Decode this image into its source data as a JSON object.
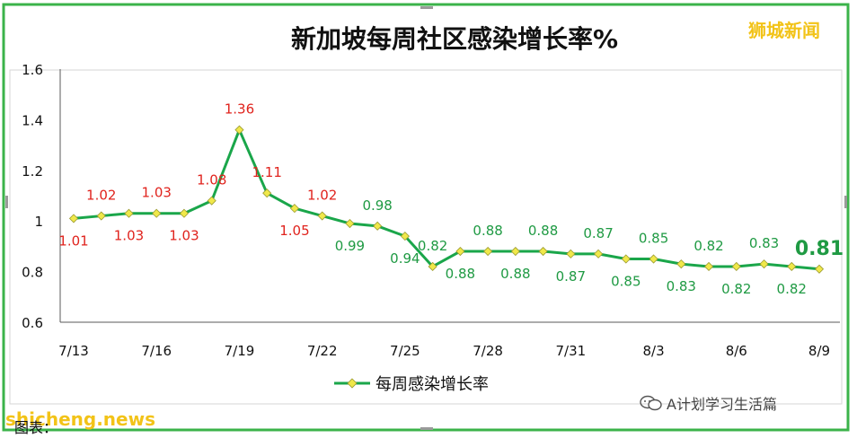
{
  "brand": "狮城新闻",
  "site": "shicheng.news",
  "caption": "图表：",
  "account": "A计划学习生活篇",
  "icons": {
    "chat": "wechat-bubbles-icon"
  },
  "colors": {
    "line": "#1aa64a",
    "marker": "#f0e84a",
    "label_low": "#1f9a43",
    "label_high": "#e0231d",
    "border": "#3bb34a",
    "brand": "#f2c318",
    "grid_axis": "#5a5a5a",
    "inner_border": "#d6d6d6"
  },
  "chart_data": {
    "type": "line",
    "title": "新加坡每周社区感染增长率%",
    "legend": "bottom",
    "grid": false,
    "ylim": [
      0.6,
      1.6
    ],
    "y_ticks": [
      "0.6",
      "0.8",
      "1",
      "1.2",
      "1.4",
      "1.6"
    ],
    "x_ticks": [
      "7/13",
      "7/16",
      "7/19",
      "7/22",
      "7/25",
      "7/28",
      "7/31",
      "8/3",
      "8/6",
      "8/9"
    ],
    "x": [
      "7/13",
      "7/14",
      "7/15",
      "7/16",
      "7/17",
      "7/18",
      "7/19",
      "7/20",
      "7/21",
      "7/22",
      "7/23",
      "7/24",
      "7/25",
      "7/26",
      "7/27",
      "7/28",
      "7/29",
      "7/30",
      "7/31",
      "8/1",
      "8/2",
      "8/3",
      "8/4",
      "8/5",
      "8/6",
      "8/7",
      "8/8",
      "8/9"
    ],
    "series": [
      {
        "name": "每周感染增长率",
        "values": [
          1.01,
          1.02,
          1.03,
          1.03,
          1.03,
          1.08,
          1.36,
          1.11,
          1.05,
          1.02,
          0.99,
          0.98,
          0.94,
          0.82,
          0.88,
          0.88,
          0.88,
          0.88,
          0.87,
          0.87,
          0.85,
          0.85,
          0.83,
          0.82,
          0.82,
          0.83,
          0.82,
          0.81
        ],
        "labels": [
          "1.01",
          "1.02",
          "1.03",
          "1.03",
          "1.03",
          "1.08",
          "1.36",
          "1.11",
          "1.05",
          "1.02",
          "0.99",
          "0.98",
          "0.94",
          "0.82",
          "0.88",
          "0.88",
          "0.88",
          "0.88",
          "0.87",
          "0.87",
          "0.85",
          "0.85",
          "0.83",
          "0.82",
          "0.82",
          "0.83",
          "0.82",
          "0.81"
        ]
      }
    ]
  }
}
